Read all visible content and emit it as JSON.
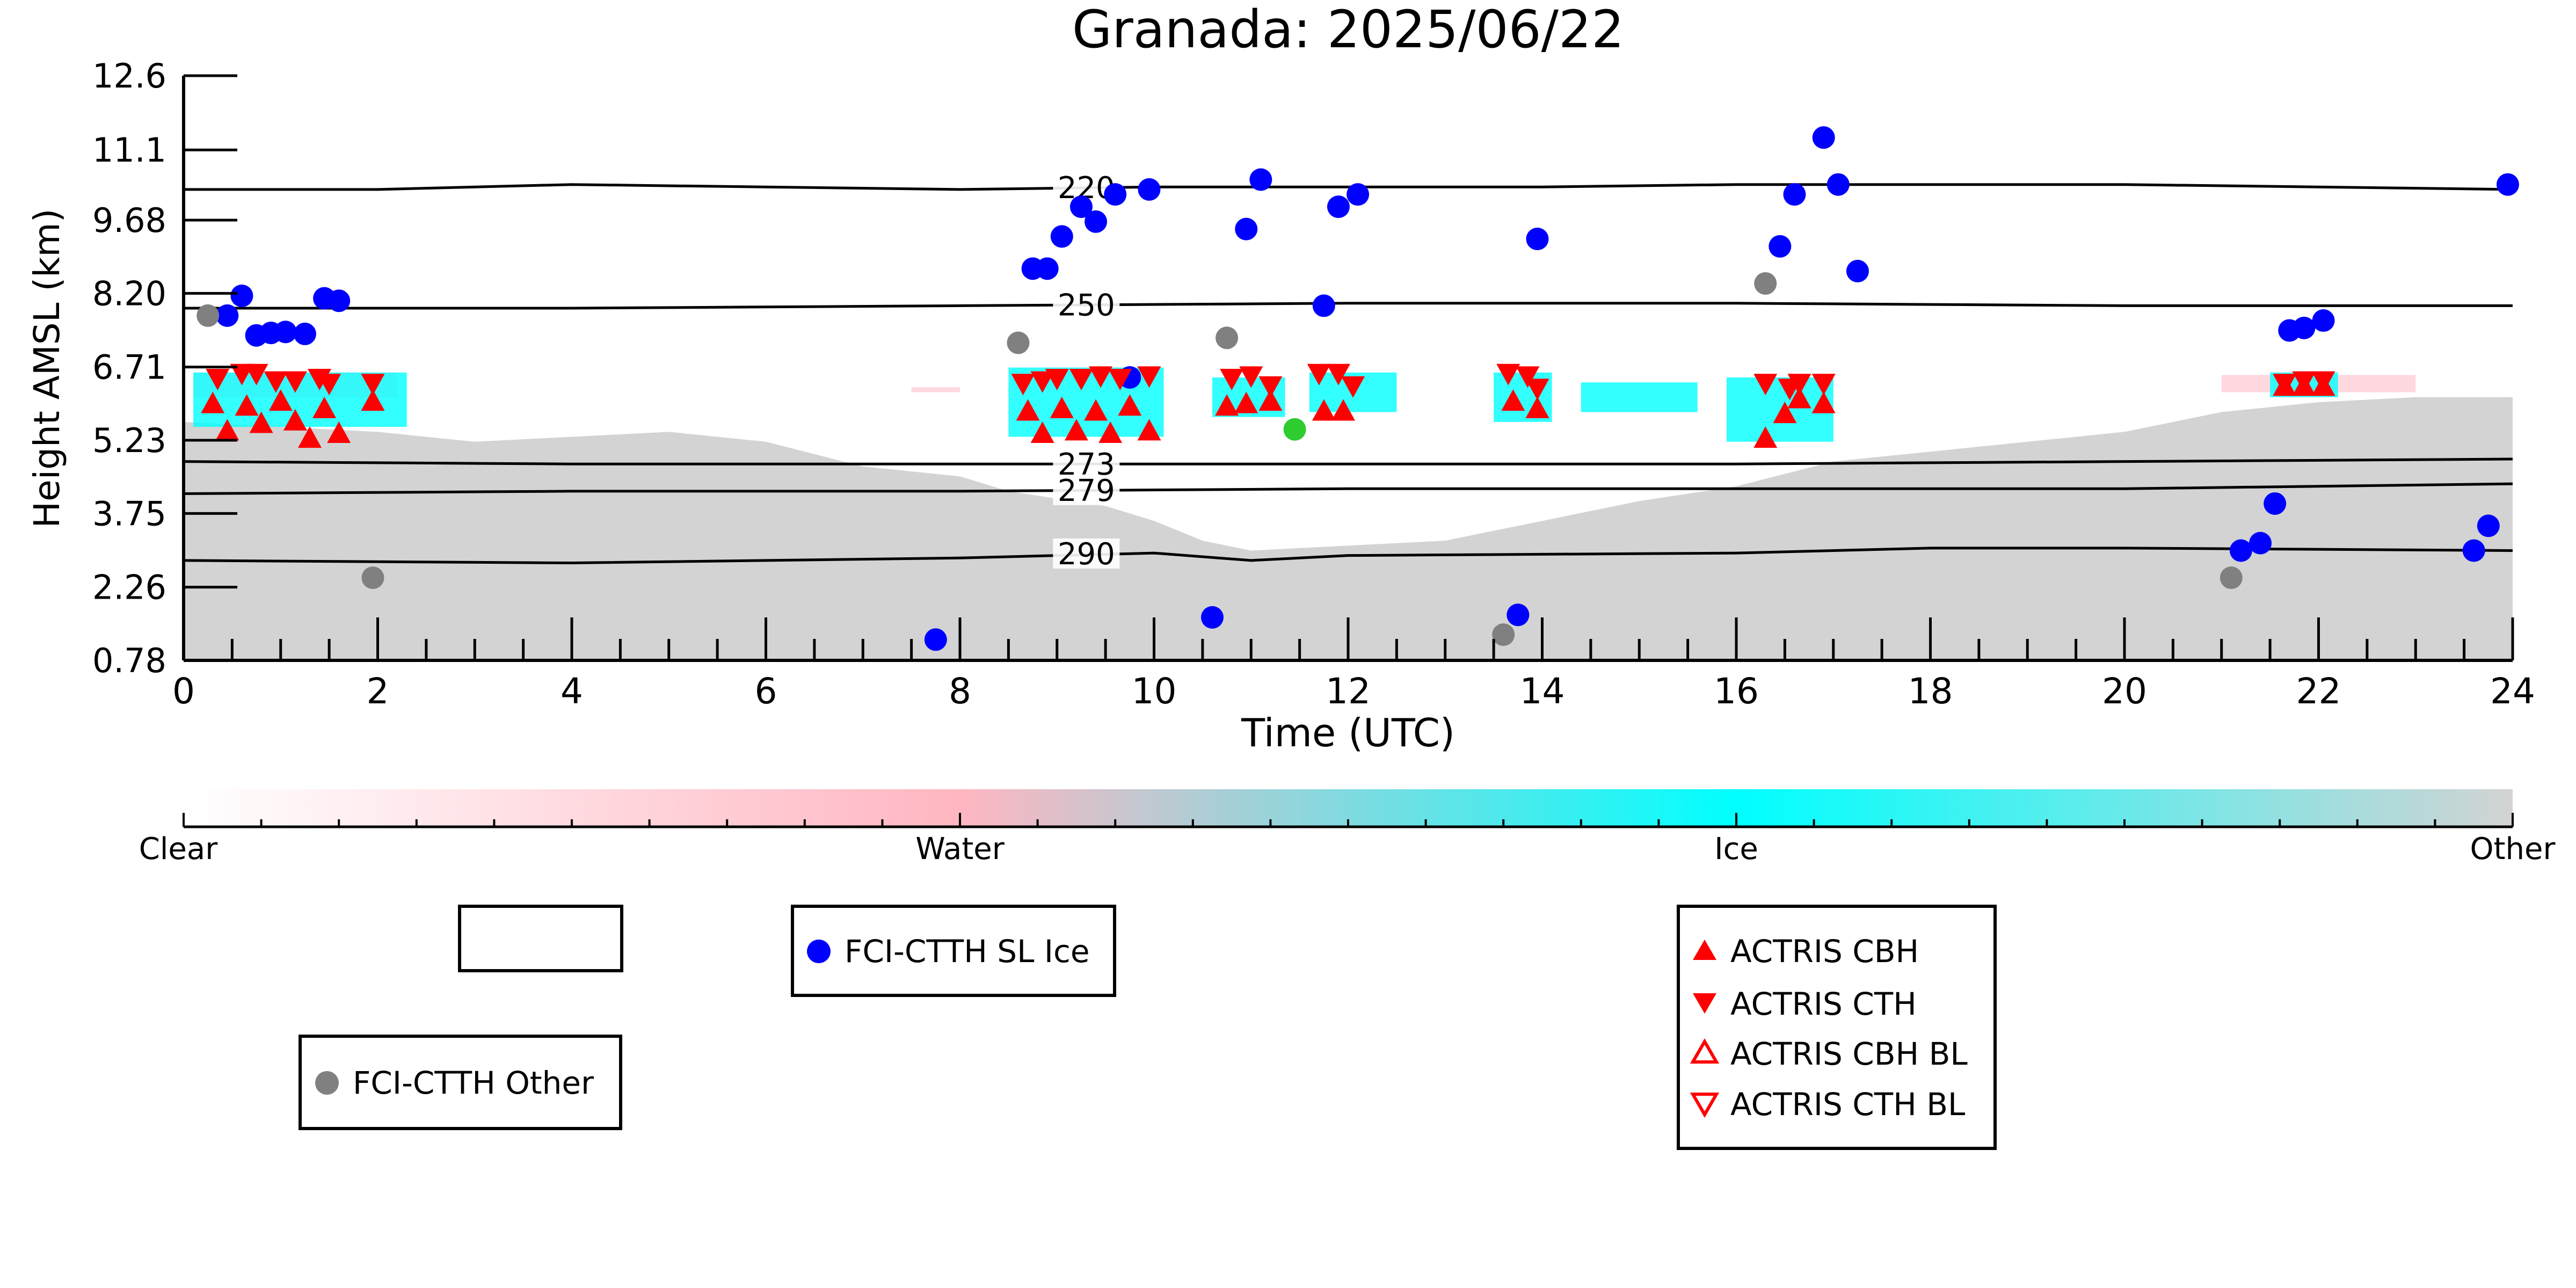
{
  "chart_data": {
    "type": "scatter",
    "title": "Granada: 2025/06/22",
    "xlabel": "Time (UTC)",
    "ylabel": "Height AMSL (km)",
    "xlim": [
      0,
      24
    ],
    "ylim": [
      0.78,
      12.6
    ],
    "x_ticks": [
      "0",
      "2",
      "4",
      "6",
      "8",
      "10",
      "12",
      "14",
      "16",
      "18",
      "20",
      "22",
      "24"
    ],
    "y_ticks": [
      "0.78",
      "2.26",
      "3.75",
      "5.23",
      "6.71",
      "8.20",
      "9.68",
      "11.1",
      "12.6"
    ],
    "y_tick_values": [
      0.78,
      2.26,
      3.75,
      5.23,
      6.71,
      8.2,
      9.68,
      11.1,
      12.6
    ],
    "colorbar": {
      "labels": [
        "Clear",
        "Water",
        "Ice",
        "Other"
      ],
      "colors": [
        "#ffffff",
        "#ffb6c1",
        "#00ffff",
        "#d3d3d3"
      ]
    },
    "legend": [
      {
        "label": "FCI-CTTH SL Ice",
        "marker": "circle",
        "color": "#0000ff"
      },
      {
        "label": "FCI-CTTH Other",
        "marker": "circle",
        "color": "#808080"
      },
      {
        "label": "ACTRIS CBH",
        "marker": "triangle-up",
        "color": "#ff0000"
      },
      {
        "label": "ACTRIS CTH",
        "marker": "triangle-down",
        "color": "#ff0000"
      },
      {
        "label": "ACTRIS CBH BL",
        "marker": "triangle-up-open",
        "color": "#ff0000"
      },
      {
        "label": "ACTRIS CTH BL",
        "marker": "triangle-down-open",
        "color": "#ff0000"
      }
    ],
    "isotherms": [
      {
        "label": "220",
        "label_x": 9.8,
        "points": [
          [
            0,
            10.3
          ],
          [
            2,
            10.3
          ],
          [
            4,
            10.4
          ],
          [
            6,
            10.35
          ],
          [
            8,
            10.3
          ],
          [
            10,
            10.35
          ],
          [
            12,
            10.35
          ],
          [
            14,
            10.35
          ],
          [
            16,
            10.4
          ],
          [
            18,
            10.4
          ],
          [
            20,
            10.4
          ],
          [
            22,
            10.35
          ],
          [
            24,
            10.3
          ]
        ]
      },
      {
        "label": "250",
        "label_x": 9.8,
        "points": [
          [
            0,
            7.9
          ],
          [
            4,
            7.9
          ],
          [
            8,
            7.95
          ],
          [
            12,
            8.0
          ],
          [
            16,
            8.0
          ],
          [
            20,
            7.95
          ],
          [
            24,
            7.95
          ]
        ]
      },
      {
        "label": "273",
        "label_x": 9.8,
        "points": [
          [
            0,
            4.8
          ],
          [
            4,
            4.75
          ],
          [
            8,
            4.75
          ],
          [
            10,
            4.75
          ],
          [
            12,
            4.75
          ],
          [
            16,
            4.75
          ],
          [
            20,
            4.8
          ],
          [
            24,
            4.85
          ]
        ]
      },
      {
        "label": "279",
        "label_x": 9.8,
        "points": [
          [
            0,
            4.15
          ],
          [
            4,
            4.2
          ],
          [
            8,
            4.2
          ],
          [
            12,
            4.25
          ],
          [
            16,
            4.25
          ],
          [
            20,
            4.25
          ],
          [
            24,
            4.35
          ]
        ]
      },
      {
        "label": "290",
        "label_x": 9.8,
        "points": [
          [
            0,
            2.8
          ],
          [
            4,
            2.75
          ],
          [
            8,
            2.85
          ],
          [
            10,
            2.95
          ],
          [
            11,
            2.8
          ],
          [
            12,
            2.9
          ],
          [
            16,
            2.95
          ],
          [
            18,
            3.05
          ],
          [
            20,
            3.05
          ],
          [
            24,
            3.0
          ]
        ]
      }
    ],
    "series": [
      {
        "name": "FCI-CTTH SL Ice",
        "color": "#0000ff",
        "marker": "circle",
        "points": [
          [
            0.45,
            7.75
          ],
          [
            0.6,
            8.15
          ],
          [
            0.75,
            7.35
          ],
          [
            0.9,
            7.4
          ],
          [
            1.05,
            7.42
          ],
          [
            1.25,
            7.38
          ],
          [
            1.45,
            8.1
          ],
          [
            1.6,
            8.05
          ],
          [
            7.75,
            1.2
          ],
          [
            8.75,
            8.7
          ],
          [
            8.9,
            8.7
          ],
          [
            9.05,
            9.35
          ],
          [
            9.25,
            9.95
          ],
          [
            9.4,
            9.65
          ],
          [
            9.6,
            10.2
          ],
          [
            9.75,
            6.5
          ],
          [
            9.95,
            10.3
          ],
          [
            10.6,
            1.65
          ],
          [
            10.95,
            9.5
          ],
          [
            11.1,
            10.5
          ],
          [
            11.75,
            7.95
          ],
          [
            11.9,
            9.95
          ],
          [
            12.1,
            10.2
          ],
          [
            13.75,
            1.7
          ],
          [
            13.95,
            9.3
          ],
          [
            16.45,
            9.15
          ],
          [
            16.6,
            10.2
          ],
          [
            16.9,
            11.35
          ],
          [
            17.05,
            10.4
          ],
          [
            17.25,
            8.65
          ],
          [
            21.2,
            3.0
          ],
          [
            21.4,
            3.15
          ],
          [
            21.55,
            3.95
          ],
          [
            21.7,
            7.45
          ],
          [
            21.85,
            7.5
          ],
          [
            22.05,
            7.65
          ],
          [
            23.6,
            3.0
          ],
          [
            23.75,
            3.5
          ],
          [
            23.95,
            10.4
          ]
        ]
      },
      {
        "name": "FCI-CTTH Other",
        "color": "#808080",
        "marker": "circle",
        "points": [
          [
            0.25,
            7.75
          ],
          [
            1.95,
            2.45
          ],
          [
            8.6,
            7.2
          ],
          [
            10.75,
            7.3
          ],
          [
            13.6,
            1.3
          ],
          [
            16.3,
            8.4
          ],
          [
            21.1,
            2.45
          ]
        ]
      },
      {
        "color": "#2ecc2e",
        "marker": "circle",
        "points": [
          [
            11.45,
            5.45
          ]
        ]
      },
      {
        "name": "ACTRIS CBH",
        "color": "#ff0000",
        "marker": "triangle-up",
        "points": [
          [
            0.3,
            5.95
          ],
          [
            0.45,
            5.4
          ],
          [
            0.65,
            5.9
          ],
          [
            0.8,
            5.55
          ],
          [
            1.0,
            6.0
          ],
          [
            1.15,
            5.6
          ],
          [
            1.3,
            5.25
          ],
          [
            1.45,
            5.85
          ],
          [
            1.6,
            5.35
          ],
          [
            1.95,
            6.0
          ],
          [
            8.7,
            5.8
          ],
          [
            8.85,
            5.35
          ],
          [
            9.05,
            5.85
          ],
          [
            9.2,
            5.4
          ],
          [
            9.4,
            5.8
          ],
          [
            9.55,
            5.35
          ],
          [
            9.75,
            5.9
          ],
          [
            9.95,
            5.4
          ],
          [
            10.75,
            5.9
          ],
          [
            10.95,
            5.95
          ],
          [
            11.2,
            6.0
          ],
          [
            11.75,
            5.8
          ],
          [
            11.95,
            5.8
          ],
          [
            13.7,
            6.0
          ],
          [
            13.95,
            5.85
          ],
          [
            16.3,
            5.25
          ],
          [
            16.5,
            5.75
          ],
          [
            16.65,
            6.05
          ],
          [
            16.9,
            5.95
          ],
          [
            21.65,
            6.3
          ],
          [
            21.85,
            6.3
          ],
          [
            22.05,
            6.3
          ]
        ]
      },
      {
        "name": "ACTRIS CTH",
        "color": "#ff0000",
        "marker": "triangle-down",
        "points": [
          [
            0.35,
            6.5
          ],
          [
            0.6,
            6.6
          ],
          [
            0.75,
            6.6
          ],
          [
            0.95,
            6.45
          ],
          [
            1.15,
            6.45
          ],
          [
            1.4,
            6.5
          ],
          [
            1.5,
            6.4
          ],
          [
            1.95,
            6.4
          ],
          [
            8.65,
            6.4
          ],
          [
            8.85,
            6.45
          ],
          [
            9.0,
            6.5
          ],
          [
            9.25,
            6.5
          ],
          [
            9.45,
            6.55
          ],
          [
            9.65,
            6.5
          ],
          [
            9.95,
            6.55
          ],
          [
            10.8,
            6.5
          ],
          [
            11.0,
            6.55
          ],
          [
            11.2,
            6.35
          ],
          [
            11.7,
            6.6
          ],
          [
            11.9,
            6.6
          ],
          [
            12.05,
            6.35
          ],
          [
            13.65,
            6.6
          ],
          [
            13.85,
            6.55
          ],
          [
            13.95,
            6.3
          ],
          [
            16.3,
            6.4
          ],
          [
            16.55,
            6.3
          ],
          [
            16.65,
            6.4
          ],
          [
            16.9,
            6.4
          ],
          [
            21.65,
            6.4
          ],
          [
            21.85,
            6.45
          ],
          [
            22.05,
            6.45
          ]
        ]
      },
      {
        "name": "ACTRIS CBH BL",
        "color": "#ff0000",
        "marker": "triangle-up-open",
        "points": []
      },
      {
        "name": "ACTRIS CTH BL",
        "color": "#ff0000",
        "marker": "triangle-down-open",
        "points": []
      }
    ]
  }
}
